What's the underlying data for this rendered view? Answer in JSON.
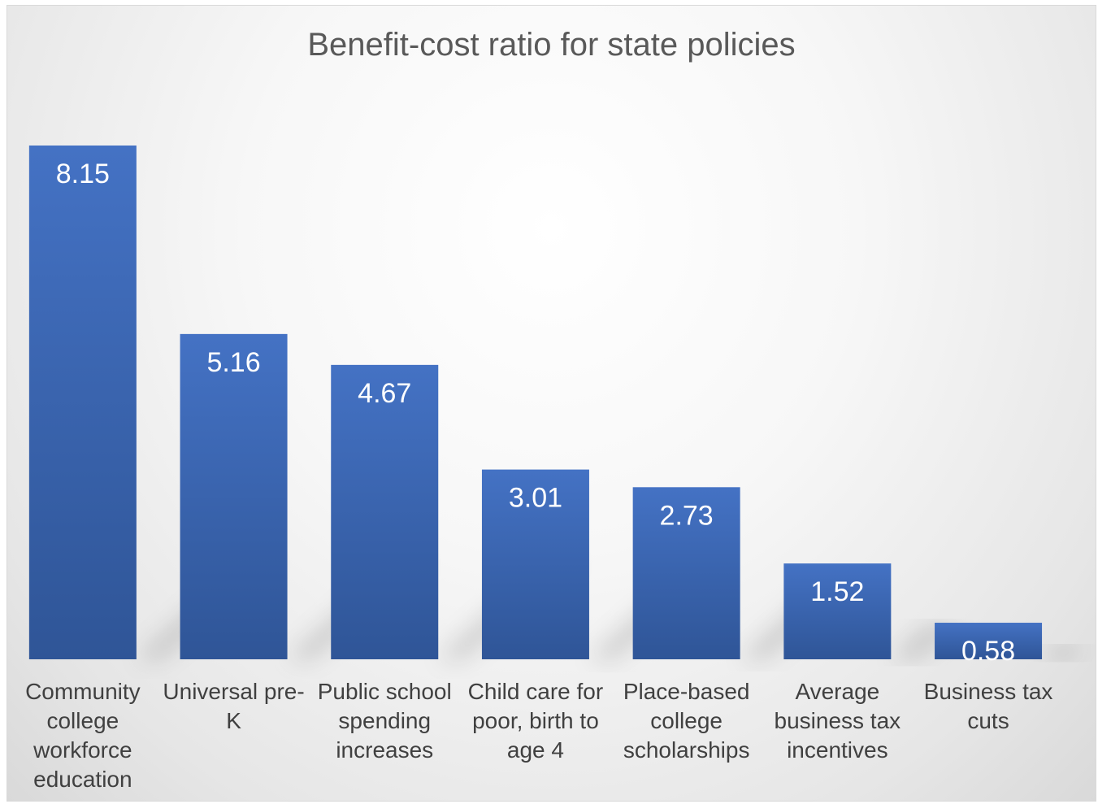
{
  "chart_data": {
    "type": "bar",
    "title": "Benefit-cost ratio for state policies",
    "categories": [
      "Community college workforce education",
      "Universal pre-K",
      "Public school spending increases",
      "Child care for poor, birth to age 4",
      "Place-based college scholarships",
      "Average business tax incentives",
      "Business tax cuts"
    ],
    "values": [
      8.15,
      5.16,
      4.67,
      3.01,
      2.73,
      1.52,
      0.58
    ],
    "value_labels": [
      "8.15",
      "5.16",
      "4.67",
      "3.01",
      "2.73",
      "1.52",
      "0.58"
    ],
    "ylim": [
      0,
      8.15
    ],
    "grid": false,
    "legend": "none",
    "colors": {
      "bar_top": "#4472c4",
      "bar_bottom": "#2f5597",
      "data_label": "#ffffff",
      "category_label": "#404040",
      "title": "#595959"
    }
  }
}
